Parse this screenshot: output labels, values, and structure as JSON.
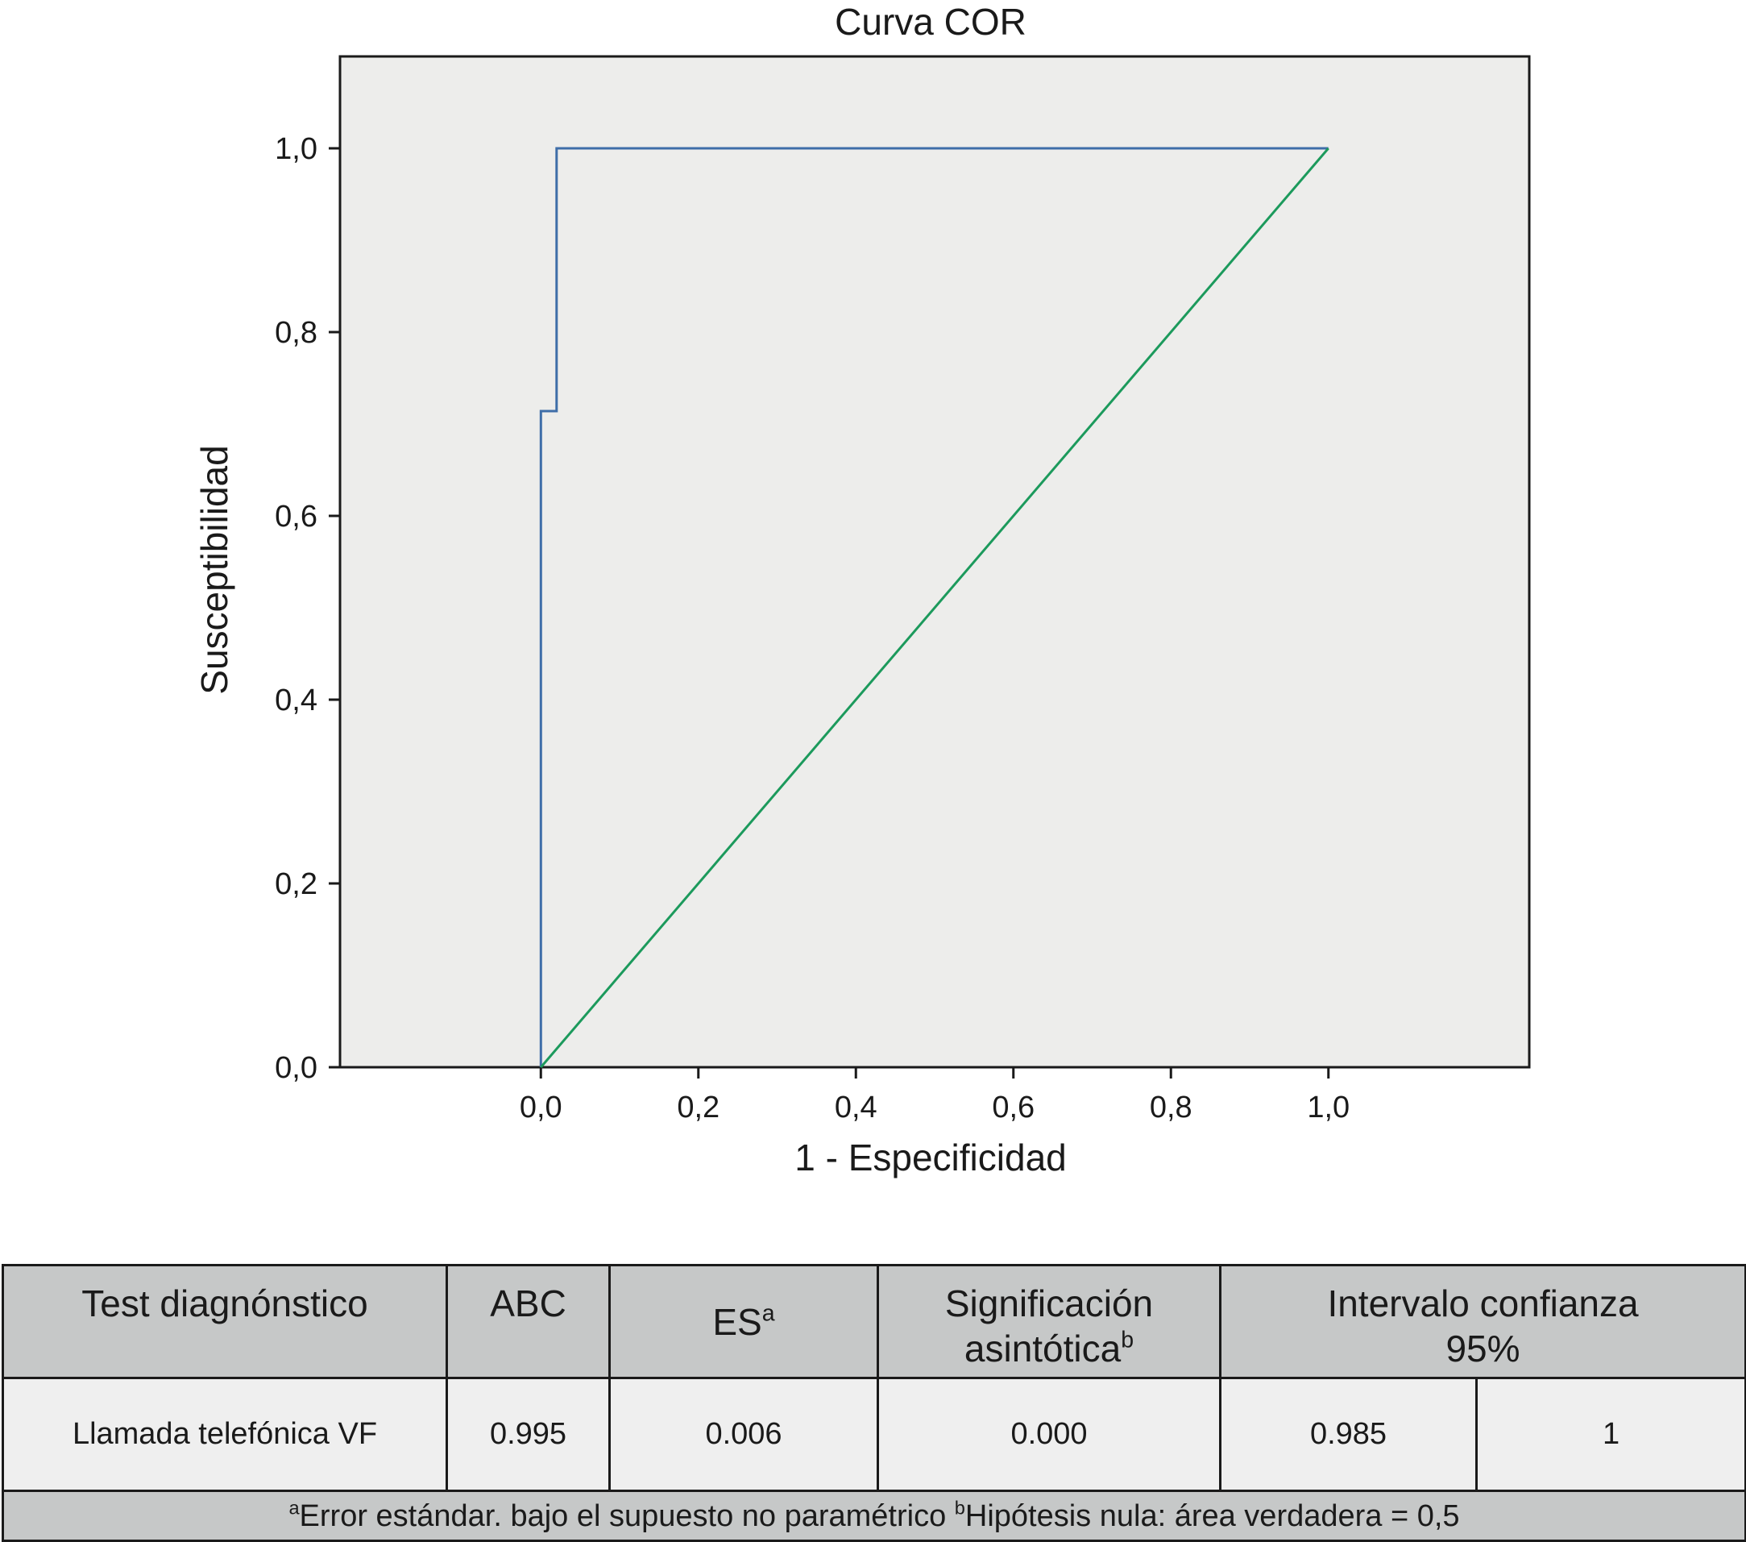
{
  "chart_data": {
    "type": "line",
    "title": "Curva COR",
    "xlabel": "1 - Especificidad",
    "ylabel": "Susceptibilidad",
    "xlim": [
      -0.255,
      1.255
    ],
    "ylim": [
      0.0,
      1.1
    ],
    "xticks": [
      "0,0",
      "0,2",
      "0,4",
      "0,6",
      "0,8",
      "1,0"
    ],
    "yticks": [
      "0,0",
      "0,2",
      "0,4",
      "0,6",
      "0,8",
      "1,0"
    ],
    "series": [
      {
        "color": "#3f6ea8",
        "x": [
          0.0,
          0.0,
          0.02,
          0.02,
          1.0
        ],
        "y": [
          0.0,
          0.714,
          0.714,
          1.0,
          1.0
        ]
      },
      {
        "color": "#1c9a5c",
        "x": [
          0.0,
          1.0
        ],
        "y": [
          0.0,
          1.0
        ]
      }
    ],
    "grid": false,
    "plot_background": "#ededeb"
  },
  "table": {
    "headers": {
      "test": "Test diagnónstico",
      "abc": "ABC",
      "es": "ES",
      "es_sup": "a",
      "sig_line1": "Significación",
      "sig_line2": "asintótica",
      "sig_sup": "b",
      "ci_line1": "Intervalo confianza",
      "ci_line2": "95%"
    },
    "row": {
      "test": "Llamada telefónica VF",
      "abc": "0.995",
      "es": "0.006",
      "sig": "0.000",
      "ci_low": "0.985",
      "ci_high": "1"
    },
    "footnote": {
      "a_mark": "a",
      "a_text": "Error estándar. bajo el supuesto no paramétrico ",
      "b_mark": "b",
      "b_text": "Hipótesis nula: área verdadera = 0,5"
    }
  }
}
